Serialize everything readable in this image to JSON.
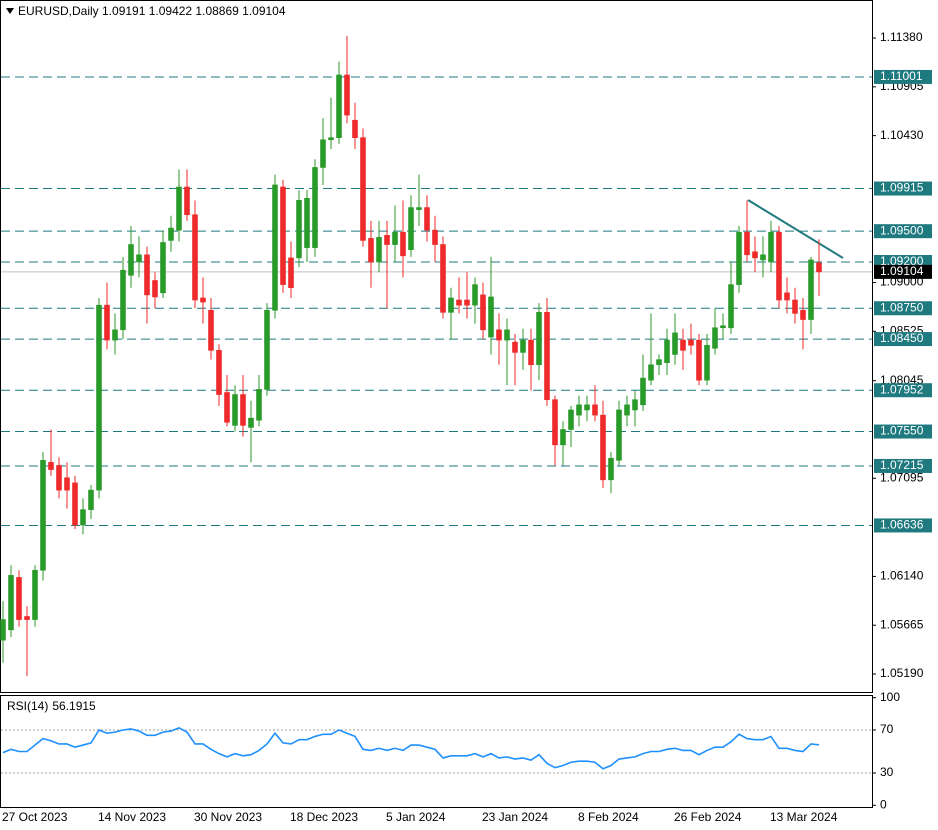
{
  "chart_data": [
    {
      "type": "candlestick",
      "title": "EURUSD,Daily 1.09191 1.09422 1.08869 1.09104",
      "categories": [
        "27 Oct 2023",
        null,
        null,
        null,
        null,
        null,
        null,
        null,
        null,
        null,
        null,
        null,
        "14 Nov 2023",
        null,
        null,
        null,
        null,
        null,
        null,
        null,
        null,
        null,
        null,
        null,
        "30 Nov 2023",
        null,
        null,
        null,
        null,
        null,
        null,
        null,
        null,
        null,
        null,
        null,
        "18 Dec 2023",
        null,
        null,
        null,
        null,
        null,
        null,
        null,
        null,
        null,
        null,
        null,
        "5 Jan 2024",
        null,
        null,
        null,
        null,
        null,
        null,
        null,
        null,
        null,
        null,
        null,
        "23 Jan 2024",
        null,
        null,
        null,
        null,
        null,
        null,
        null,
        null,
        null,
        null,
        null,
        "8 Feb 2024",
        null,
        null,
        null,
        null,
        null,
        null,
        null,
        null,
        null,
        null,
        null,
        "26 Feb 2024",
        null,
        null,
        null,
        null,
        null,
        null,
        null,
        null,
        null,
        null,
        null,
        "13 Mar 2024",
        null,
        null,
        null,
        null,
        null,
        null
      ],
      "open": [
        1.0552,
        1.0562,
        1.0613,
        1.0575,
        1.0572,
        1.062,
        1.0725,
        1.0722,
        1.071,
        1.0705,
        1.0664,
        1.0679,
        1.0698,
        1.0878,
        1.0844,
        1.0854,
        1.0907,
        1.092,
        1.0927,
        1.0902,
        1.089,
        1.0941,
        1.0951,
        1.0993,
        1.0966,
        1.0885,
        1.0873,
        1.0834,
        1.0793,
        1.0761,
        1.0791,
        1.0759,
        1.0766,
        1.0796,
        1.0873,
        1.0993,
        1.0924,
        1.0924,
        1.0934,
        1.0934,
        1.1012,
        1.1039,
        1.1041,
        1.1102,
        1.1058,
        1.1041,
        1.0943,
        1.092,
        1.0946,
        1.0937,
        1.0949,
        1.0932,
        1.0971,
        1.0973,
        1.0951,
        1.0937,
        1.0871,
        1.0883,
        1.0883,
        1.0878,
        1.0888,
        1.0847,
        1.0854,
        1.0844,
        1.0842,
        1.0832,
        1.0844,
        1.082,
        1.0871,
        1.0786,
        1.0742,
        1.0757,
        1.0771,
        1.0776,
        1.0781,
        1.0771,
        1.0708,
        1.0727,
        1.0771,
        1.0776,
        1.0781,
        1.0805,
        1.082,
        1.0822,
        1.083,
        1.0844,
        1.0844,
        1.0844,
        1.0805,
        1.0836,
        1.0856,
        1.0856,
        1.0898,
        1.0949,
        1.093,
        1.0922,
        1.092,
        1.0949,
        1.089,
        1.0883,
        1.0873,
        1.0864,
        1.09191
      ],
      "high": [
        1.059,
        1.0625,
        1.062,
        1.0585,
        1.0625,
        1.0735,
        1.0757,
        1.073,
        1.0725,
        1.0712,
        1.069,
        1.0703,
        1.0885,
        1.09,
        1.087,
        1.0925,
        1.0955,
        1.0945,
        1.0935,
        1.091,
        1.095,
        1.0965,
        1.101,
        1.101,
        1.098,
        1.0905,
        1.0885,
        1.084,
        1.081,
        1.08,
        1.081,
        1.0785,
        1.081,
        1.088,
        1.1005,
        1.1,
        1.094,
        1.099,
        1.099,
        1.102,
        1.106,
        1.108,
        1.1115,
        1.114,
        1.1075,
        1.105,
        1.096,
        1.096,
        1.096,
        1.0975,
        1.098,
        1.0985,
        1.1005,
        1.0985,
        1.0965,
        1.0945,
        1.0895,
        1.0905,
        1.091,
        1.0905,
        1.09,
        1.0925,
        1.087,
        1.0865,
        1.085,
        1.0855,
        1.0855,
        1.088,
        1.0885,
        1.079,
        1.0765,
        1.078,
        1.079,
        1.079,
        1.08,
        1.0785,
        1.0735,
        1.0785,
        1.079,
        1.0795,
        1.083,
        1.087,
        1.083,
        1.0855,
        1.087,
        1.0855,
        1.086,
        1.085,
        1.085,
        1.0875,
        1.087,
        1.092,
        1.0955,
        1.098,
        1.0945,
        1.0945,
        1.096,
        1.0955,
        1.0905,
        1.0895,
        1.0885,
        1.0925,
        1.09422
      ],
      "low": [
        1.053,
        1.0555,
        1.0565,
        1.0517,
        1.0565,
        1.061,
        1.0712,
        1.069,
        1.068,
        1.066,
        1.0655,
        1.067,
        1.069,
        1.0835,
        1.083,
        1.0845,
        1.0895,
        1.0905,
        1.086,
        1.0875,
        1.0885,
        1.093,
        1.094,
        1.096,
        1.0875,
        1.086,
        1.0825,
        1.078,
        1.076,
        1.0755,
        1.075,
        1.0725,
        1.076,
        1.079,
        1.0865,
        1.089,
        1.0885,
        1.0915,
        1.092,
        1.0925,
        1.0995,
        1.103,
        1.1035,
        1.1055,
        1.103,
        1.0935,
        1.0895,
        1.091,
        1.0875,
        1.092,
        1.0905,
        1.0925,
        1.0955,
        1.094,
        1.092,
        1.0865,
        1.0845,
        1.087,
        1.0865,
        1.086,
        1.0845,
        1.083,
        1.082,
        1.08,
        1.08,
        1.0815,
        1.0795,
        1.0805,
        1.078,
        1.0722,
        1.0722,
        1.074,
        1.076,
        1.0765,
        1.0765,
        1.07,
        1.0695,
        1.0722,
        1.076,
        1.076,
        1.0775,
        1.08,
        1.081,
        1.081,
        1.082,
        1.0815,
        1.083,
        1.08,
        1.08,
        1.083,
        1.0845,
        1.085,
        1.089,
        1.092,
        1.091,
        1.0905,
        1.091,
        1.0875,
        1.087,
        1.086,
        1.0835,
        1.085,
        1.08869
      ],
      "close": [
        1.0572,
        1.0615,
        1.0572,
        1.0572,
        1.062,
        1.0727,
        1.0718,
        1.0698,
        1.0698,
        1.0664,
        1.0679,
        1.0698,
        1.0878,
        1.0844,
        1.0854,
        1.0912,
        1.0937,
        1.0927,
        1.0888,
        1.0886,
        1.0939,
        1.0953,
        1.0993,
        1.0966,
        1.0883,
        1.0881,
        1.0834,
        1.0791,
        1.0764,
        1.0791,
        1.0761,
        1.0768,
        1.0796,
        1.0873,
        1.0995,
        1.0898,
        1.0895,
        1.098,
        1.0982,
        1.1012,
        1.1039,
        1.1041,
        1.1102,
        1.1063,
        1.1041,
        1.0941,
        1.092,
        1.0944,
        1.0937,
        1.0949,
        1.0926,
        1.0973,
        1.0973,
        1.0951,
        1.0937,
        1.0871,
        1.0885,
        1.0878,
        1.0878,
        1.0898,
        1.0854,
        1.0886,
        1.0844,
        1.0854,
        1.0832,
        1.0844,
        1.082,
        1.0871,
        1.0786,
        1.0742,
        1.0757,
        1.0776,
        1.0781,
        1.0781,
        1.0771,
        1.0708,
        1.0729,
        1.0776,
        1.0781,
        1.0786,
        1.0807,
        1.082,
        1.0825,
        1.0844,
        1.0851,
        1.0834,
        1.0839,
        1.0805,
        1.0839,
        1.0856,
        1.0858,
        1.0898,
        1.0949,
        1.0927,
        1.0924,
        1.0927,
        1.0949,
        1.0883,
        1.0883,
        1.087,
        1.0864,
        1.0922,
        1.09104
      ],
      "up_color": "#2a9a2a",
      "down_color": "#ee2a2a",
      "ylim": [
        1.05015,
        1.1175
      ],
      "yticks": [
        {
          "value": 1.1138,
          "label": "1.11380"
        },
        {
          "value": 1.10905,
          "label": "1.10905"
        },
        {
          "value": 1.1043,
          "label": "1.10430"
        },
        {
          "value": 1.09,
          "label": "1.09000"
        },
        {
          "value": 1.08525,
          "label": "1.08525"
        },
        {
          "value": 1.08045,
          "label": "1.08045"
        },
        {
          "value": 1.07095,
          "label": "1.07095"
        },
        {
          "value": 1.0614,
          "label": "1.06140"
        },
        {
          "value": 1.05665,
          "label": "1.05665"
        },
        {
          "value": 1.0519,
          "label": "1.05190"
        }
      ],
      "levels": [
        {
          "value": 1.11001,
          "label": "1.11001"
        },
        {
          "value": 1.09915,
          "label": "1.09915"
        },
        {
          "value": 1.095,
          "label": "1.09500"
        },
        {
          "value": 1.092,
          "label": "1.09200"
        },
        {
          "value": 1.0875,
          "label": "1.08750"
        },
        {
          "value": 1.0845,
          "label": "1.08450"
        },
        {
          "value": 1.07952,
          "label": "1.07952"
        },
        {
          "value": 1.0755,
          "label": "1.07550"
        },
        {
          "value": 1.07215,
          "label": "1.07215"
        },
        {
          "value": 1.06636,
          "label": "1.06636"
        }
      ],
      "level_color": "#1f7a80",
      "current_price": {
        "value": 1.09104,
        "label": "1.09104"
      }
    },
    {
      "type": "line",
      "title": "RSI(14)",
      "values": [
        49,
        52,
        50,
        50,
        56,
        62,
        60,
        57,
        57,
        54,
        56,
        58,
        70,
        67,
        68,
        70,
        71,
        69,
        65,
        65,
        68,
        69,
        72,
        68,
        57,
        57,
        52,
        48,
        45,
        48,
        46,
        47,
        51,
        57,
        67,
        58,
        57,
        61,
        61,
        64,
        66,
        66,
        70,
        67,
        64,
        52,
        51,
        53,
        51,
        53,
        51,
        56,
        56,
        54,
        52,
        44,
        46,
        46,
        46,
        48,
        45,
        48,
        44,
        45,
        43,
        44,
        42,
        47,
        39,
        35,
        37,
        40,
        41,
        41,
        40,
        34,
        37,
        43,
        44,
        45,
        48,
        50,
        50,
        52,
        53,
        51,
        51,
        47,
        51,
        54,
        54,
        59,
        66,
        62,
        61,
        61,
        64,
        53,
        53,
        51,
        50,
        57,
        56.1915
      ],
      "color": "#1e90ff",
      "ylim": [
        -2.5,
        102.5
      ],
      "yticks": [
        100,
        70,
        30,
        0
      ],
      "levels": [
        70,
        30
      ]
    }
  ]
}
